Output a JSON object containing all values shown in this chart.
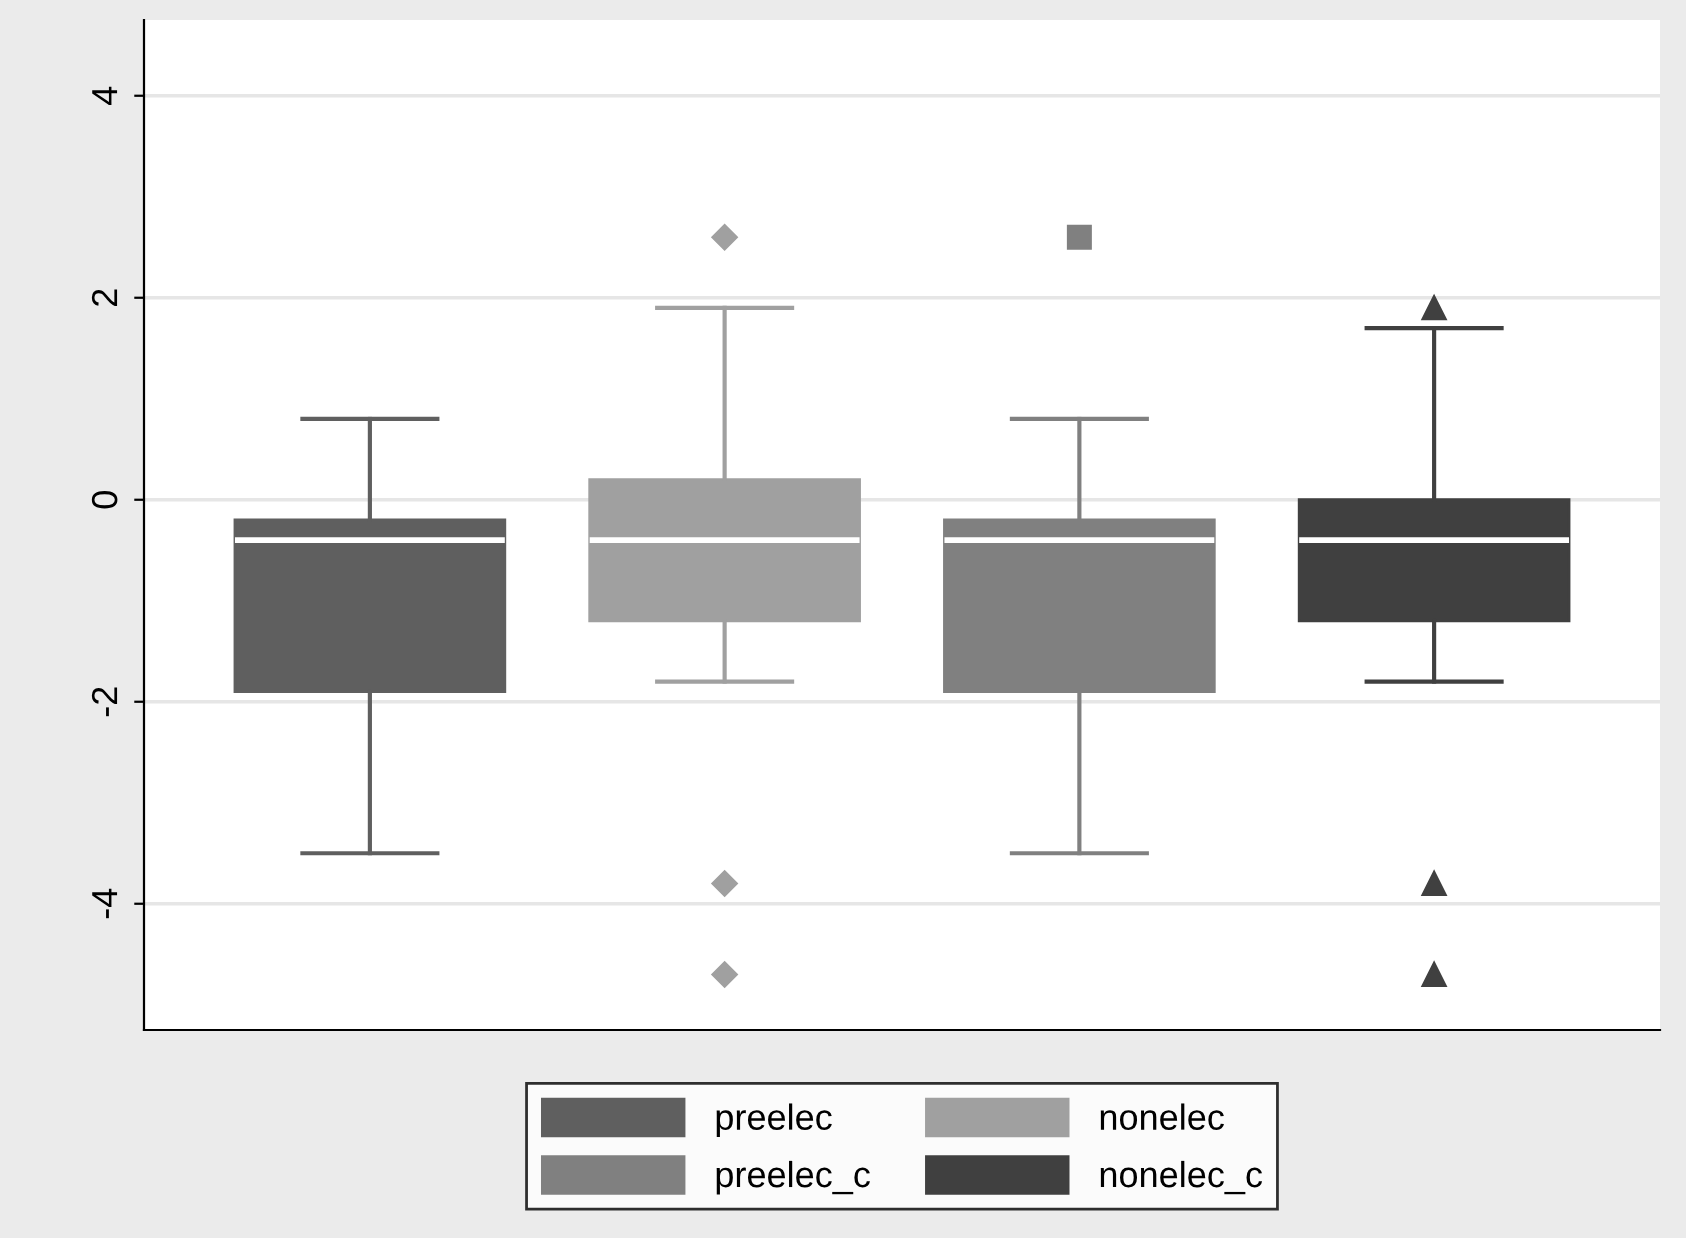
{
  "chart_data": {
    "type": "box",
    "categories": [
      null
    ],
    "series": [
      {
        "name": "preelec",
        "color": "#5f5f5f",
        "boxes": [
          {
            "low": -3.5,
            "q1": -1.9,
            "median": -0.4,
            "q3": -0.2,
            "high": 0.8
          }
        ]
      },
      {
        "name": "nonelec",
        "color": "#a0a0a0",
        "marker": "diamond",
        "boxes": [
          {
            "low": -1.8,
            "q1": -1.2,
            "median": -0.4,
            "q3": 0.2,
            "high": 1.9,
            "outliers": [
              2.6,
              -3.8,
              -4.7
            ]
          }
        ]
      },
      {
        "name": "preelec_c",
        "color": "#808080",
        "marker": "square",
        "boxes": [
          {
            "low": -3.5,
            "q1": -1.9,
            "median": -0.4,
            "q3": -0.2,
            "high": 0.8,
            "outliers": [
              2.6
            ]
          }
        ]
      },
      {
        "name": "nonelec_c",
        "color": "#404040",
        "marker": "triangle",
        "boxes": [
          {
            "low": -1.8,
            "q1": -1.2,
            "median": -0.4,
            "q3": 0.0,
            "high": 1.7,
            "outliers": [
              1.9,
              -3.8,
              -4.7
            ]
          }
        ]
      }
    ],
    "ylim": [
      -5.25,
      4.75
    ],
    "yticks": [
      -4,
      -2,
      0,
      2,
      4
    ],
    "grid": "y",
    "legend": "bottom"
  }
}
